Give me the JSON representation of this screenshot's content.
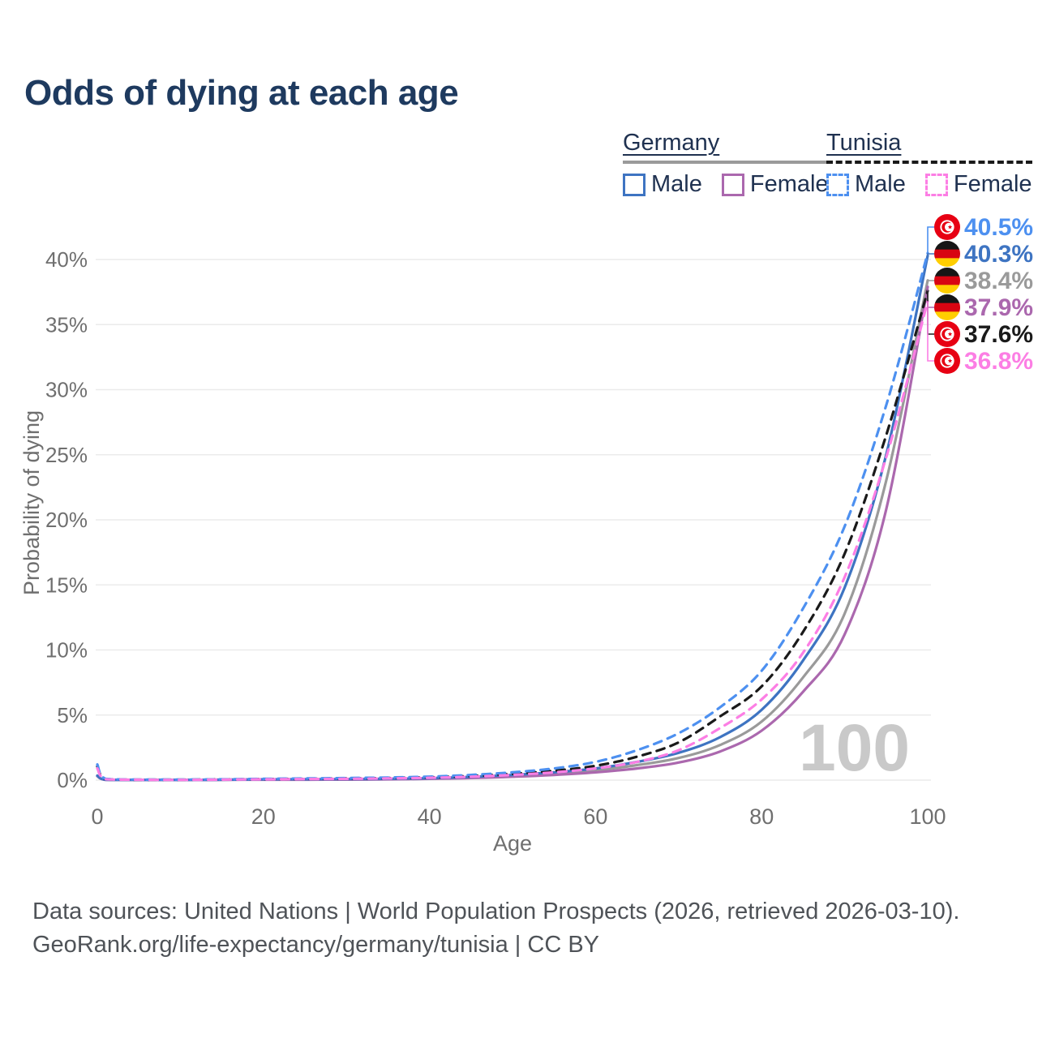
{
  "title": "Odds of dying at each age",
  "legend": {
    "groups": [
      {
        "country": "Germany",
        "line_style": "solid",
        "line_color": "#9a9a9a",
        "items": [
          {
            "label": "Male",
            "color": "#3e74c2"
          },
          {
            "label": "Female",
            "color": "#ab68ae"
          }
        ]
      },
      {
        "country": "Tunisia",
        "line_style": "dashed",
        "line_color": "#1a1a1a",
        "items": [
          {
            "label": "Male",
            "color": "#4d90f0"
          },
          {
            "label": "Female",
            "color": "#fc7ee4"
          }
        ]
      }
    ]
  },
  "watermark": "100",
  "footer": {
    "line1": "Data sources: United Nations | World Population Prospects (2026, retrieved 2026-03-10).",
    "line2": "GeoRank.org/life-expectancy/germany/tunisia | CC BY"
  },
  "chart_data": {
    "type": "line",
    "title": "Odds of dying at each age",
    "xlabel": "Age",
    "ylabel": "Probability of dying",
    "xlim": [
      0,
      100
    ],
    "xticks": [
      0,
      20,
      40,
      60,
      80,
      100
    ],
    "yticks_percent": [
      0,
      5,
      10,
      15,
      20,
      25,
      30,
      35,
      40
    ],
    "ylim_percent": [
      0,
      43
    ],
    "grid": "horizontal",
    "legend_position": "top-right",
    "ages": [
      0,
      1,
      5,
      10,
      15,
      20,
      25,
      30,
      35,
      40,
      45,
      50,
      55,
      60,
      65,
      70,
      75,
      80,
      85,
      90,
      95,
      100
    ],
    "series": [
      {
        "id": "germany-total",
        "name": "Germany (both sexes)",
        "country": "Germany",
        "sex": "Both",
        "line": "solid",
        "color": "#9a9a9a",
        "flag": "germany",
        "end_label": "38.4%",
        "values_percent": [
          0.33,
          0.03,
          0.02,
          0.02,
          0.03,
          0.05,
          0.05,
          0.06,
          0.08,
          0.12,
          0.2,
          0.33,
          0.5,
          0.75,
          1.15,
          1.7,
          2.7,
          4.5,
          7.9,
          12.8,
          23.0,
          38.4
        ]
      },
      {
        "id": "germany-female",
        "name": "Germany Female",
        "country": "Germany",
        "sex": "Female",
        "line": "solid",
        "color": "#ab68ae",
        "flag": "germany",
        "end_label": "37.9%",
        "values_percent": [
          0.3,
          0.02,
          0.01,
          0.01,
          0.02,
          0.03,
          0.03,
          0.04,
          0.06,
          0.1,
          0.16,
          0.26,
          0.4,
          0.6,
          0.9,
          1.35,
          2.2,
          3.8,
          6.8,
          11.2,
          20.8,
          37.9
        ]
      },
      {
        "id": "germany-male",
        "name": "Germany Male",
        "country": "Germany",
        "sex": "Male",
        "line": "solid",
        "color": "#3e74c2",
        "flag": "germany",
        "end_label": "40.3%",
        "values_percent": [
          0.35,
          0.03,
          0.02,
          0.02,
          0.03,
          0.06,
          0.07,
          0.08,
          0.1,
          0.15,
          0.25,
          0.4,
          0.6,
          0.9,
          1.4,
          2.1,
          3.3,
          5.4,
          9.2,
          14.8,
          25.0,
          40.3
        ]
      },
      {
        "id": "tunisia-total",
        "name": "Tunisia (both sexes)",
        "country": "Tunisia",
        "sex": "Both",
        "line": "dashed",
        "color": "#1a1a1a",
        "flag": "tunisia",
        "end_label": "37.6%",
        "values_percent": [
          1.05,
          0.08,
          0.03,
          0.03,
          0.05,
          0.08,
          0.1,
          0.13,
          0.16,
          0.22,
          0.32,
          0.48,
          0.72,
          1.1,
          1.8,
          2.9,
          4.9,
          7.2,
          11.4,
          17.4,
          26.5,
          37.6
        ]
      },
      {
        "id": "tunisia-male",
        "name": "Tunisia Male",
        "country": "Tunisia",
        "sex": "Male",
        "line": "dashed",
        "color": "#4d90f0",
        "flag": "tunisia",
        "end_label": "40.5%",
        "values_percent": [
          1.2,
          0.1,
          0.04,
          0.04,
          0.06,
          0.1,
          0.13,
          0.16,
          0.2,
          0.27,
          0.4,
          0.6,
          0.9,
          1.4,
          2.3,
          3.6,
          5.6,
          8.4,
          13.2,
          19.5,
          28.8,
          40.5
        ]
      },
      {
        "id": "tunisia-female",
        "name": "Tunisia Female",
        "country": "Tunisia",
        "sex": "Female",
        "line": "dashed",
        "color": "#fc7ee4",
        "flag": "tunisia",
        "end_label": "36.8%",
        "values_percent": [
          0.9,
          0.07,
          0.03,
          0.02,
          0.04,
          0.06,
          0.08,
          0.1,
          0.13,
          0.18,
          0.26,
          0.4,
          0.6,
          0.9,
          1.4,
          2.3,
          4.0,
          6.2,
          9.8,
          15.6,
          24.8,
          36.8
        ]
      }
    ],
    "colors": {
      "grid": "#ebebeb",
      "axis_text": "#6f6f6f",
      "watermark": "#c9c9c9",
      "germany_flag": [
        "#161616",
        "#d80512",
        "#ffce00"
      ],
      "tunisia_flag": "#e70013"
    }
  }
}
